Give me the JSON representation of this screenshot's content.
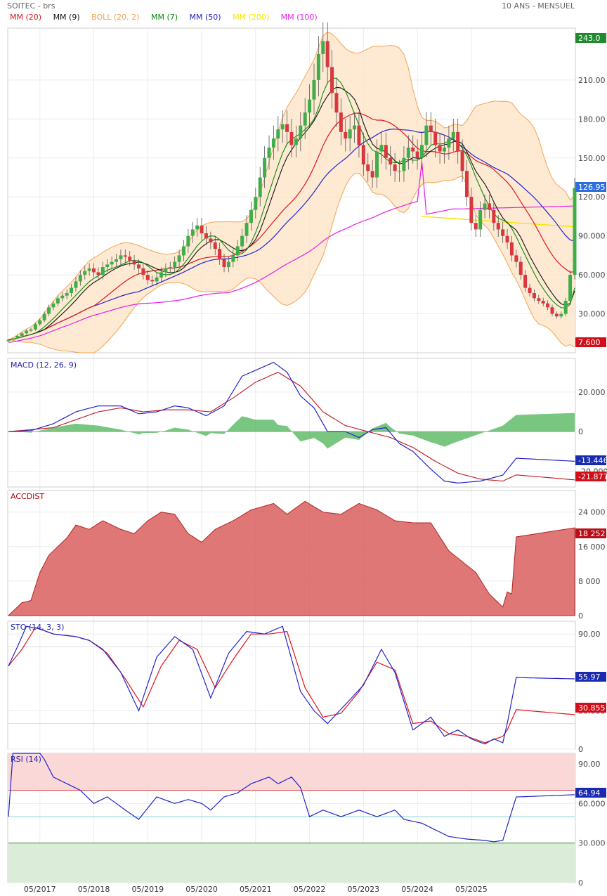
{
  "header": {
    "symbol": "SOITEC - brs",
    "period": "10 ANS - MENSUEL"
  },
  "legend": [
    {
      "label": "MM (20)",
      "color": "#e0141e"
    },
    {
      "label": "MM (9)",
      "color": "#111111"
    },
    {
      "label": "BOLL (20, 2)",
      "color": "#f4a352"
    },
    {
      "label": "MM (7)",
      "color": "#0a8a0a"
    },
    {
      "label": "MM (50)",
      "color": "#2222cc"
    },
    {
      "label": "MM (200)",
      "color": "#f3e600"
    },
    {
      "label": "MM (100)",
      "color": "#e61ee6"
    }
  ],
  "chart_data": [
    {
      "type": "candlestick",
      "panel": "price",
      "x_labels": [
        "05/2017",
        "05/2018",
        "05/2019",
        "05/2020",
        "05/2021",
        "05/2022",
        "05/2023",
        "05/2024",
        "05/2025"
      ],
      "y_ticks": [
        30,
        60,
        90,
        120,
        150,
        180,
        210
      ],
      "y_tick_labels": [
        "30.000",
        "60.000",
        "90.000",
        "120.00",
        "150.00",
        "180.00",
        "210.00"
      ],
      "ylim": [
        0,
        250
      ],
      "close": [
        10,
        11,
        13,
        15,
        17,
        18,
        22,
        25,
        30,
        35,
        38,
        42,
        44,
        46,
        50,
        55,
        60,
        63,
        65,
        62,
        60,
        66,
        68,
        70,
        72,
        75,
        74,
        71,
        68,
        65,
        60,
        56,
        55,
        58,
        62,
        65,
        66,
        70,
        75,
        82,
        90,
        95,
        98,
        92,
        88,
        85,
        80,
        72,
        66,
        70,
        75,
        82,
        90,
        100,
        110,
        120,
        135,
        150,
        158,
        165,
        172,
        176,
        170,
        160,
        165,
        175,
        185,
        195,
        210,
        230,
        240,
        220,
        200,
        185,
        170,
        165,
        172,
        175,
        160,
        145,
        140,
        135,
        155,
        160,
        150,
        145,
        140,
        140,
        150,
        158,
        155,
        150,
        160,
        175,
        170,
        160,
        155,
        158,
        165,
        170,
        155,
        140,
        120,
        100,
        95,
        110,
        115,
        110,
        100,
        95,
        90,
        85,
        75,
        70,
        60,
        50,
        46,
        42,
        40,
        38,
        35,
        30,
        28,
        30,
        40,
        60,
        126.95
      ],
      "last_close": 126.95,
      "last_close_label": "126.95",
      "top_badge": "243.0",
      "bottom_badge": "7.600",
      "lines": {
        "mm200": {
          "label": "MM (200)",
          "color": "#f3e600",
          "last": 97
        },
        "mm100": {
          "label": "MM (100)",
          "color": "#e61ee6",
          "last": 109
        }
      }
    },
    {
      "type": "line",
      "panel": "macd",
      "title": "MACD (12, 26, 9)",
      "y_ticks": [
        20,
        0,
        -20
      ],
      "y_tick_labels": [
        "20.000",
        "0",
        "-20.000"
      ],
      "ylim": [
        -28,
        37
      ],
      "macd_anchors": [
        [
          0,
          0
        ],
        [
          5,
          0.5
        ],
        [
          10,
          4
        ],
        [
          15,
          10
        ],
        [
          20,
          13
        ],
        [
          25,
          13
        ],
        [
          29,
          9
        ],
        [
          33,
          10
        ],
        [
          37,
          13
        ],
        [
          40,
          12
        ],
        [
          44,
          8
        ],
        [
          48,
          13
        ],
        [
          52,
          28
        ],
        [
          56,
          32
        ],
        [
          59,
          35
        ],
        [
          62,
          30
        ],
        [
          65,
          18
        ],
        [
          68,
          12
        ],
        [
          71,
          0
        ],
        [
          75,
          0
        ],
        [
          78,
          -3
        ],
        [
          81,
          1
        ],
        [
          84,
          2
        ],
        [
          87,
          -6
        ],
        [
          90,
          -10
        ],
        [
          94,
          -19
        ],
        [
          97,
          -25
        ],
        [
          100,
          -26
        ],
        [
          105,
          -25
        ],
        [
          110,
          -22
        ],
        [
          113,
          -13.446
        ]
      ],
      "signal_anchors": [
        [
          0,
          0
        ],
        [
          10,
          2
        ],
        [
          20,
          10
        ],
        [
          25,
          12
        ],
        [
          30,
          10
        ],
        [
          35,
          11
        ],
        [
          40,
          11
        ],
        [
          45,
          10
        ],
        [
          50,
          17
        ],
        [
          55,
          25
        ],
        [
          60,
          30
        ],
        [
          65,
          23
        ],
        [
          70,
          10
        ],
        [
          75,
          3
        ],
        [
          80,
          0
        ],
        [
          85,
          -3
        ],
        [
          90,
          -8
        ],
        [
          95,
          -15
        ],
        [
          100,
          -21
        ],
        [
          105,
          -24
        ],
        [
          110,
          -25
        ],
        [
          113,
          -21.877
        ]
      ],
      "macd_last_label": "-13.446",
      "signal_last_label": "-21.877"
    },
    {
      "type": "area",
      "panel": "accdist",
      "title": "ACCDIST",
      "y_ticks": [
        24000,
        16000,
        8000,
        0
      ],
      "y_tick_labels": [
        "24 000",
        "16 000",
        "8 000",
        "0"
      ],
      "ylim": [
        0,
        29000
      ],
      "anchors": [
        [
          0,
          0
        ],
        [
          3,
          3000
        ],
        [
          5,
          3500
        ],
        [
          7,
          10000
        ],
        [
          9,
          14000
        ],
        [
          11,
          16000
        ],
        [
          13,
          18000
        ],
        [
          15,
          21000
        ],
        [
          18,
          20000
        ],
        [
          21,
          22000
        ],
        [
          25,
          20000
        ],
        [
          28,
          19000
        ],
        [
          31,
          22000
        ],
        [
          34,
          24000
        ],
        [
          37,
          23500
        ],
        [
          40,
          19000
        ],
        [
          43,
          17000
        ],
        [
          46,
          20000
        ],
        [
          50,
          22000
        ],
        [
          54,
          24500
        ],
        [
          59,
          26000
        ],
        [
          62,
          23500
        ],
        [
          66,
          26500
        ],
        [
          70,
          24000
        ],
        [
          74,
          23500
        ],
        [
          78,
          26000
        ],
        [
          82,
          24500
        ],
        [
          86,
          22000
        ],
        [
          90,
          21500
        ],
        [
          94,
          21500
        ],
        [
          98,
          15000
        ],
        [
          101,
          12500
        ],
        [
          104,
          10000
        ],
        [
          107,
          5000
        ],
        [
          110,
          2000
        ],
        [
          111,
          5500
        ],
        [
          112,
          5000
        ],
        [
          113,
          18252
        ]
      ],
      "last_label": "18 252"
    },
    {
      "type": "line",
      "panel": "sto",
      "title": "STO (14, 3, 3)",
      "y_ticks": [
        90,
        30,
        0
      ],
      "y_tick_labels": [
        "90.00",
        "30.000",
        "0"
      ],
      "ylim": [
        0,
        100
      ],
      "k_anchors": [
        [
          0,
          65
        ],
        [
          2,
          80
        ],
        [
          4,
          96
        ],
        [
          7,
          94
        ],
        [
          10,
          90
        ],
        [
          15,
          88
        ],
        [
          18,
          85
        ],
        [
          21,
          78
        ],
        [
          25,
          60
        ],
        [
          29,
          30
        ],
        [
          33,
          72
        ],
        [
          37,
          88
        ],
        [
          41,
          78
        ],
        [
          45,
          40
        ],
        [
          49,
          75
        ],
        [
          53,
          92
        ],
        [
          57,
          90
        ],
        [
          61,
          96
        ],
        [
          65,
          45
        ],
        [
          68,
          30
        ],
        [
          71,
          20
        ],
        [
          75,
          35
        ],
        [
          79,
          50
        ],
        [
          83,
          78
        ],
        [
          86,
          60
        ],
        [
          90,
          15
        ],
        [
          94,
          25
        ],
        [
          97,
          10
        ],
        [
          100,
          15
        ],
        [
          103,
          8
        ],
        [
          106,
          4
        ],
        [
          108,
          8
        ],
        [
          110,
          5
        ],
        [
          111,
          20
        ],
        [
          113,
          55.97
        ]
      ],
      "d_anchors": [
        [
          0,
          65
        ],
        [
          3,
          78
        ],
        [
          6,
          95
        ],
        [
          10,
          90
        ],
        [
          15,
          88
        ],
        [
          18,
          85
        ],
        [
          22,
          75
        ],
        [
          26,
          55
        ],
        [
          30,
          33
        ],
        [
          34,
          65
        ],
        [
          38,
          85
        ],
        [
          42,
          78
        ],
        [
          46,
          48
        ],
        [
          50,
          70
        ],
        [
          54,
          90
        ],
        [
          58,
          90
        ],
        [
          62,
          92
        ],
        [
          66,
          48
        ],
        [
          70,
          25
        ],
        [
          74,
          28
        ],
        [
          78,
          45
        ],
        [
          82,
          68
        ],
        [
          86,
          62
        ],
        [
          90,
          20
        ],
        [
          94,
          22
        ],
        [
          98,
          12
        ],
        [
          102,
          10
        ],
        [
          106,
          5
        ],
        [
          110,
          10
        ],
        [
          111,
          15
        ],
        [
          113,
          30.855
        ]
      ],
      "k_last_label": "55.97",
      "d_last_label": "30.855"
    },
    {
      "type": "line",
      "panel": "rsi",
      "title": "RSI (14)",
      "y_ticks": [
        90,
        60,
        30,
        0
      ],
      "y_tick_labels": [
        "90.00",
        "60.000",
        "30.000",
        "0"
      ],
      "ylim": [
        0,
        98
      ],
      "levels": [
        70,
        50,
        30
      ],
      "anchors": [
        [
          0,
          50
        ],
        [
          1,
          100
        ],
        [
          4,
          100
        ],
        [
          7,
          100
        ],
        [
          10,
          80
        ],
        [
          13,
          75
        ],
        [
          16,
          70
        ],
        [
          19,
          60
        ],
        [
          22,
          65
        ],
        [
          26,
          55
        ],
        [
          29,
          48
        ],
        [
          33,
          65
        ],
        [
          37,
          60
        ],
        [
          40,
          63
        ],
        [
          43,
          60
        ],
        [
          45,
          55
        ],
        [
          48,
          65
        ],
        [
          51,
          68
        ],
        [
          54,
          75
        ],
        [
          58,
          80
        ],
        [
          60,
          75
        ],
        [
          63,
          80
        ],
        [
          65,
          72
        ],
        [
          67,
          50
        ],
        [
          70,
          55
        ],
        [
          74,
          50
        ],
        [
          78,
          55
        ],
        [
          82,
          50
        ],
        [
          86,
          55
        ],
        [
          88,
          48
        ],
        [
          92,
          45
        ],
        [
          95,
          40
        ],
        [
          98,
          35
        ],
        [
          102,
          33
        ],
        [
          106,
          32
        ],
        [
          108,
          31
        ],
        [
          110,
          32
        ],
        [
          113,
          64.94
        ]
      ],
      "last_label": "64.94"
    }
  ]
}
